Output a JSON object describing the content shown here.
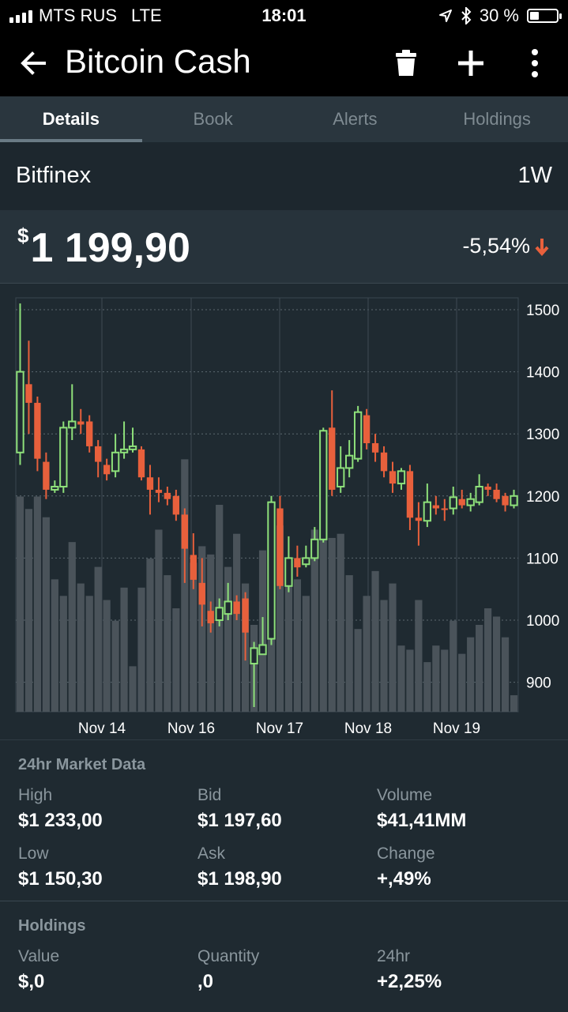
{
  "status": {
    "carrier": "MTS RUS",
    "network": "LTE",
    "time": "18:01",
    "battery": "30 %"
  },
  "appbar": {
    "title": "Bitcoin Cash"
  },
  "tabs": [
    {
      "label": "Details",
      "active": true
    },
    {
      "label": "Book",
      "active": false
    },
    {
      "label": "Alerts",
      "active": false
    },
    {
      "label": "Holdings",
      "active": false
    }
  ],
  "exchange": {
    "name": "Bitfinex",
    "period": "1W"
  },
  "price": {
    "currency": "$",
    "value": "1 199,90",
    "change": "-5,54%"
  },
  "colors": {
    "up": "#8ee07a",
    "down": "#e8603c",
    "volume": "#4a535a",
    "background": "#1f2a31"
  },
  "chart_data": {
    "type": "candlestick",
    "x_tick_labels": [
      "Nov 14",
      "Nov 16",
      "Nov 17",
      "Nov 18",
      "Nov 19"
    ],
    "y_ticks": [
      1500,
      1400,
      1300,
      1200,
      1100,
      1000,
      900
    ],
    "ylim": [
      860,
      1520
    ],
    "grid": true,
    "candles": [
      {
        "o": 1270,
        "c": 1400,
        "h": 1510,
        "l": 1250
      },
      {
        "o": 1380,
        "c": 1350,
        "h": 1450,
        "l": 1300
      },
      {
        "o": 1350,
        "c": 1260,
        "h": 1360,
        "l": 1240
      },
      {
        "o": 1255,
        "c": 1210,
        "h": 1270,
        "l": 1195
      },
      {
        "o": 1210,
        "c": 1215,
        "h": 1225,
        "l": 1205
      },
      {
        "o": 1215,
        "c": 1310,
        "h": 1320,
        "l": 1205
      },
      {
        "o": 1310,
        "c": 1320,
        "h": 1380,
        "l": 1290
      },
      {
        "o": 1320,
        "c": 1315,
        "h": 1340,
        "l": 1300
      },
      {
        "o": 1320,
        "c": 1280,
        "h": 1330,
        "l": 1270
      },
      {
        "o": 1280,
        "c": 1255,
        "h": 1290,
        "l": 1230
      },
      {
        "o": 1250,
        "c": 1235,
        "h": 1260,
        "l": 1225
      },
      {
        "o": 1240,
        "c": 1270,
        "h": 1300,
        "l": 1230
      },
      {
        "o": 1270,
        "c": 1275,
        "h": 1320,
        "l": 1260
      },
      {
        "o": 1275,
        "c": 1280,
        "h": 1310,
        "l": 1270
      },
      {
        "o": 1275,
        "c": 1230,
        "h": 1280,
        "l": 1225
      },
      {
        "o": 1230,
        "c": 1210,
        "h": 1250,
        "l": 1170
      },
      {
        "o": 1210,
        "c": 1205,
        "h": 1230,
        "l": 1190
      },
      {
        "o": 1205,
        "c": 1195,
        "h": 1215,
        "l": 1185
      },
      {
        "o": 1200,
        "c": 1170,
        "h": 1210,
        "l": 1160
      },
      {
        "o": 1170,
        "c": 1115,
        "h": 1180,
        "l": 1060
      },
      {
        "o": 1105,
        "c": 1065,
        "h": 1140,
        "l": 1050
      },
      {
        "o": 1060,
        "c": 1025,
        "h": 1100,
        "l": 990
      },
      {
        "o": 1015,
        "c": 995,
        "h": 1030,
        "l": 980
      },
      {
        "o": 1000,
        "c": 1020,
        "h": 1035,
        "l": 990
      },
      {
        "o": 1010,
        "c": 1030,
        "h": 1060,
        "l": 1000
      },
      {
        "o": 1030,
        "c": 1010,
        "h": 1040,
        "l": 1000
      },
      {
        "o": 1035,
        "c": 980,
        "h": 1045,
        "l": 935
      },
      {
        "o": 930,
        "c": 955,
        "h": 965,
        "l": 860
      },
      {
        "o": 945,
        "c": 960,
        "h": 1005,
        "l": 945
      },
      {
        "o": 970,
        "c": 1190,
        "h": 1200,
        "l": 960
      },
      {
        "o": 1180,
        "c": 1055,
        "h": 1200,
        "l": 1050
      },
      {
        "o": 1055,
        "c": 1100,
        "h": 1135,
        "l": 1045
      },
      {
        "o": 1100,
        "c": 1085,
        "h": 1120,
        "l": 1070
      },
      {
        "o": 1090,
        "c": 1100,
        "h": 1120,
        "l": 1085
      },
      {
        "o": 1100,
        "c": 1130,
        "h": 1150,
        "l": 1095
      },
      {
        "o": 1130,
        "c": 1305,
        "h": 1310,
        "l": 1125
      },
      {
        "o": 1310,
        "c": 1210,
        "h": 1370,
        "l": 1200
      },
      {
        "o": 1215,
        "c": 1245,
        "h": 1280,
        "l": 1205
      },
      {
        "o": 1245,
        "c": 1265,
        "h": 1290,
        "l": 1230
      },
      {
        "o": 1260,
        "c": 1335,
        "h": 1345,
        "l": 1255
      },
      {
        "o": 1330,
        "c": 1285,
        "h": 1340,
        "l": 1275
      },
      {
        "o": 1285,
        "c": 1270,
        "h": 1300,
        "l": 1255
      },
      {
        "o": 1270,
        "c": 1240,
        "h": 1280,
        "l": 1230
      },
      {
        "o": 1240,
        "c": 1220,
        "h": 1255,
        "l": 1205
      },
      {
        "o": 1220,
        "c": 1240,
        "h": 1245,
        "l": 1210
      },
      {
        "o": 1240,
        "c": 1165,
        "h": 1250,
        "l": 1145
      },
      {
        "o": 1165,
        "c": 1160,
        "h": 1190,
        "l": 1120
      },
      {
        "o": 1160,
        "c": 1190,
        "h": 1220,
        "l": 1150
      },
      {
        "o": 1185,
        "c": 1180,
        "h": 1200,
        "l": 1170
      },
      {
        "o": 1180,
        "c": 1178,
        "h": 1195,
        "l": 1160
      },
      {
        "o": 1180,
        "c": 1198,
        "h": 1215,
        "l": 1170
      },
      {
        "o": 1195,
        "c": 1185,
        "h": 1210,
        "l": 1180
      },
      {
        "o": 1185,
        "c": 1195,
        "h": 1205,
        "l": 1175
      },
      {
        "o": 1190,
        "c": 1215,
        "h": 1235,
        "l": 1185
      },
      {
        "o": 1215,
        "c": 1210,
        "h": 1220,
        "l": 1200
      },
      {
        "o": 1210,
        "c": 1195,
        "h": 1220,
        "l": 1190
      },
      {
        "o": 1200,
        "c": 1185,
        "h": 1205,
        "l": 1175
      },
      {
        "o": 1185,
        "c": 1200,
        "h": 1210,
        "l": 1180
      }
    ],
    "volume": [
      0.52,
      0.49,
      0.52,
      0.47,
      0.32,
      0.28,
      0.41,
      0.31,
      0.28,
      0.35,
      0.27,
      0.22,
      0.3,
      0.11,
      0.3,
      0.37,
      0.44,
      0.33,
      0.25,
      0.61,
      0.36,
      0.4,
      0.38,
      0.5,
      0.35,
      0.43,
      0.31,
      0.21,
      0.39,
      0.33,
      0.45,
      0.37,
      0.32,
      0.28,
      0.44,
      0.56,
      0.42,
      0.43,
      0.33,
      0.2,
      0.28,
      0.34,
      0.27,
      0.31,
      0.16,
      0.15,
      0.27,
      0.12,
      0.16,
      0.15,
      0.22,
      0.14,
      0.18,
      0.21,
      0.25,
      0.23,
      0.18,
      0.04
    ]
  },
  "market": {
    "title": "24hr Market Data",
    "high_label": "High",
    "high_value": "$1 233,00",
    "bid_label": "Bid",
    "bid_value": "$1 197,60",
    "volume_label": "Volume",
    "volume_value": "$41,41MM",
    "low_label": "Low",
    "low_value": "$1 150,30",
    "ask_label": "Ask",
    "ask_value": "$1 198,90",
    "change_label": "Change",
    "change_value": "+,49%"
  },
  "holdings": {
    "title": "Holdings",
    "value_label": "Value",
    "value_value": "$,0",
    "quantity_label": "Quantity",
    "quantity_value": ",0",
    "h24_label": "24hr",
    "h24_value": "+2,25%"
  }
}
